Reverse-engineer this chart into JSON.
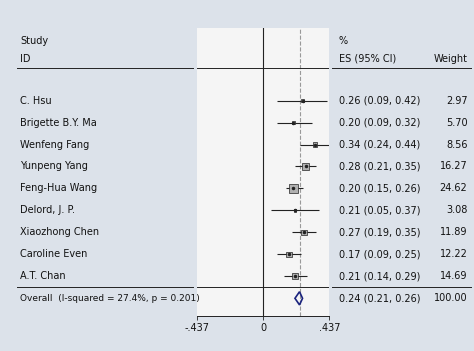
{
  "studies": [
    {
      "id": "C. Hsu",
      "es": 0.26,
      "ci_lo": 0.09,
      "ci_hi": 0.42,
      "weight": 2.97,
      "label": "0.26 (0.09, 0.42)",
      "w_label": "2.97"
    },
    {
      "id": "Brigette B.Y. Ma",
      "es": 0.2,
      "ci_lo": 0.09,
      "ci_hi": 0.32,
      "weight": 5.7,
      "label": "0.20 (0.09, 0.32)",
      "w_label": "5.70"
    },
    {
      "id": "Wenfeng Fang",
      "es": 0.34,
      "ci_lo": 0.24,
      "ci_hi": 0.44,
      "weight": 8.56,
      "label": "0.34 (0.24, 0.44)",
      "w_label": "8.56"
    },
    {
      "id": "Yunpeng Yang",
      "es": 0.28,
      "ci_lo": 0.21,
      "ci_hi": 0.35,
      "weight": 16.27,
      "label": "0.28 (0.21, 0.35)",
      "w_label": "16.27"
    },
    {
      "id": "Feng-Hua Wang",
      "es": 0.2,
      "ci_lo": 0.15,
      "ci_hi": 0.26,
      "weight": 24.62,
      "label": "0.20 (0.15, 0.26)",
      "w_label": "24.62"
    },
    {
      "id": "Delord, J. P.",
      "es": 0.21,
      "ci_lo": 0.05,
      "ci_hi": 0.37,
      "weight": 3.08,
      "label": "0.21 (0.05, 0.37)",
      "w_label": "3.08"
    },
    {
      "id": "Xiaozhong Chen",
      "es": 0.27,
      "ci_lo": 0.19,
      "ci_hi": 0.35,
      "weight": 11.89,
      "label": "0.27 (0.19, 0.35)",
      "w_label": "11.89"
    },
    {
      "id": "Caroline Even",
      "es": 0.17,
      "ci_lo": 0.09,
      "ci_hi": 0.25,
      "weight": 12.22,
      "label": "0.17 (0.09, 0.25)",
      "w_label": "12.22"
    },
    {
      "id": "A.T. Chan",
      "es": 0.21,
      "ci_lo": 0.14,
      "ci_hi": 0.29,
      "weight": 14.69,
      "label": "0.21 (0.14, 0.29)",
      "w_label": "14.69"
    }
  ],
  "overall": {
    "id": "Overall  (I-squared = 27.4%, p = 0.201)",
    "es": 0.24,
    "ci_lo": 0.21,
    "ci_hi": 0.26,
    "label": "0.24 (0.21, 0.26)",
    "w_label": "100.00"
  },
  "xlim": [
    -0.437,
    0.437
  ],
  "xticks": [
    -0.437,
    0.0,
    0.437
  ],
  "xticklabels": [
    "-.437",
    "0",
    ".437"
  ],
  "null_line": 0.0,
  "dashed_line": 0.24,
  "header_study": "Study",
  "header_id": "ID",
  "header_es": "ES (95% CI)",
  "header_pct": "%",
  "header_weight": "Weight",
  "bg_color": "#dce2ea",
  "plot_bg_color": "#f5f5f5",
  "box_color": "#b0b0b0",
  "line_color": "#222222",
  "dashed_color": "#999999",
  "diamond_color": "#1a237e",
  "text_color": "#111111",
  "font_size": 7.0
}
